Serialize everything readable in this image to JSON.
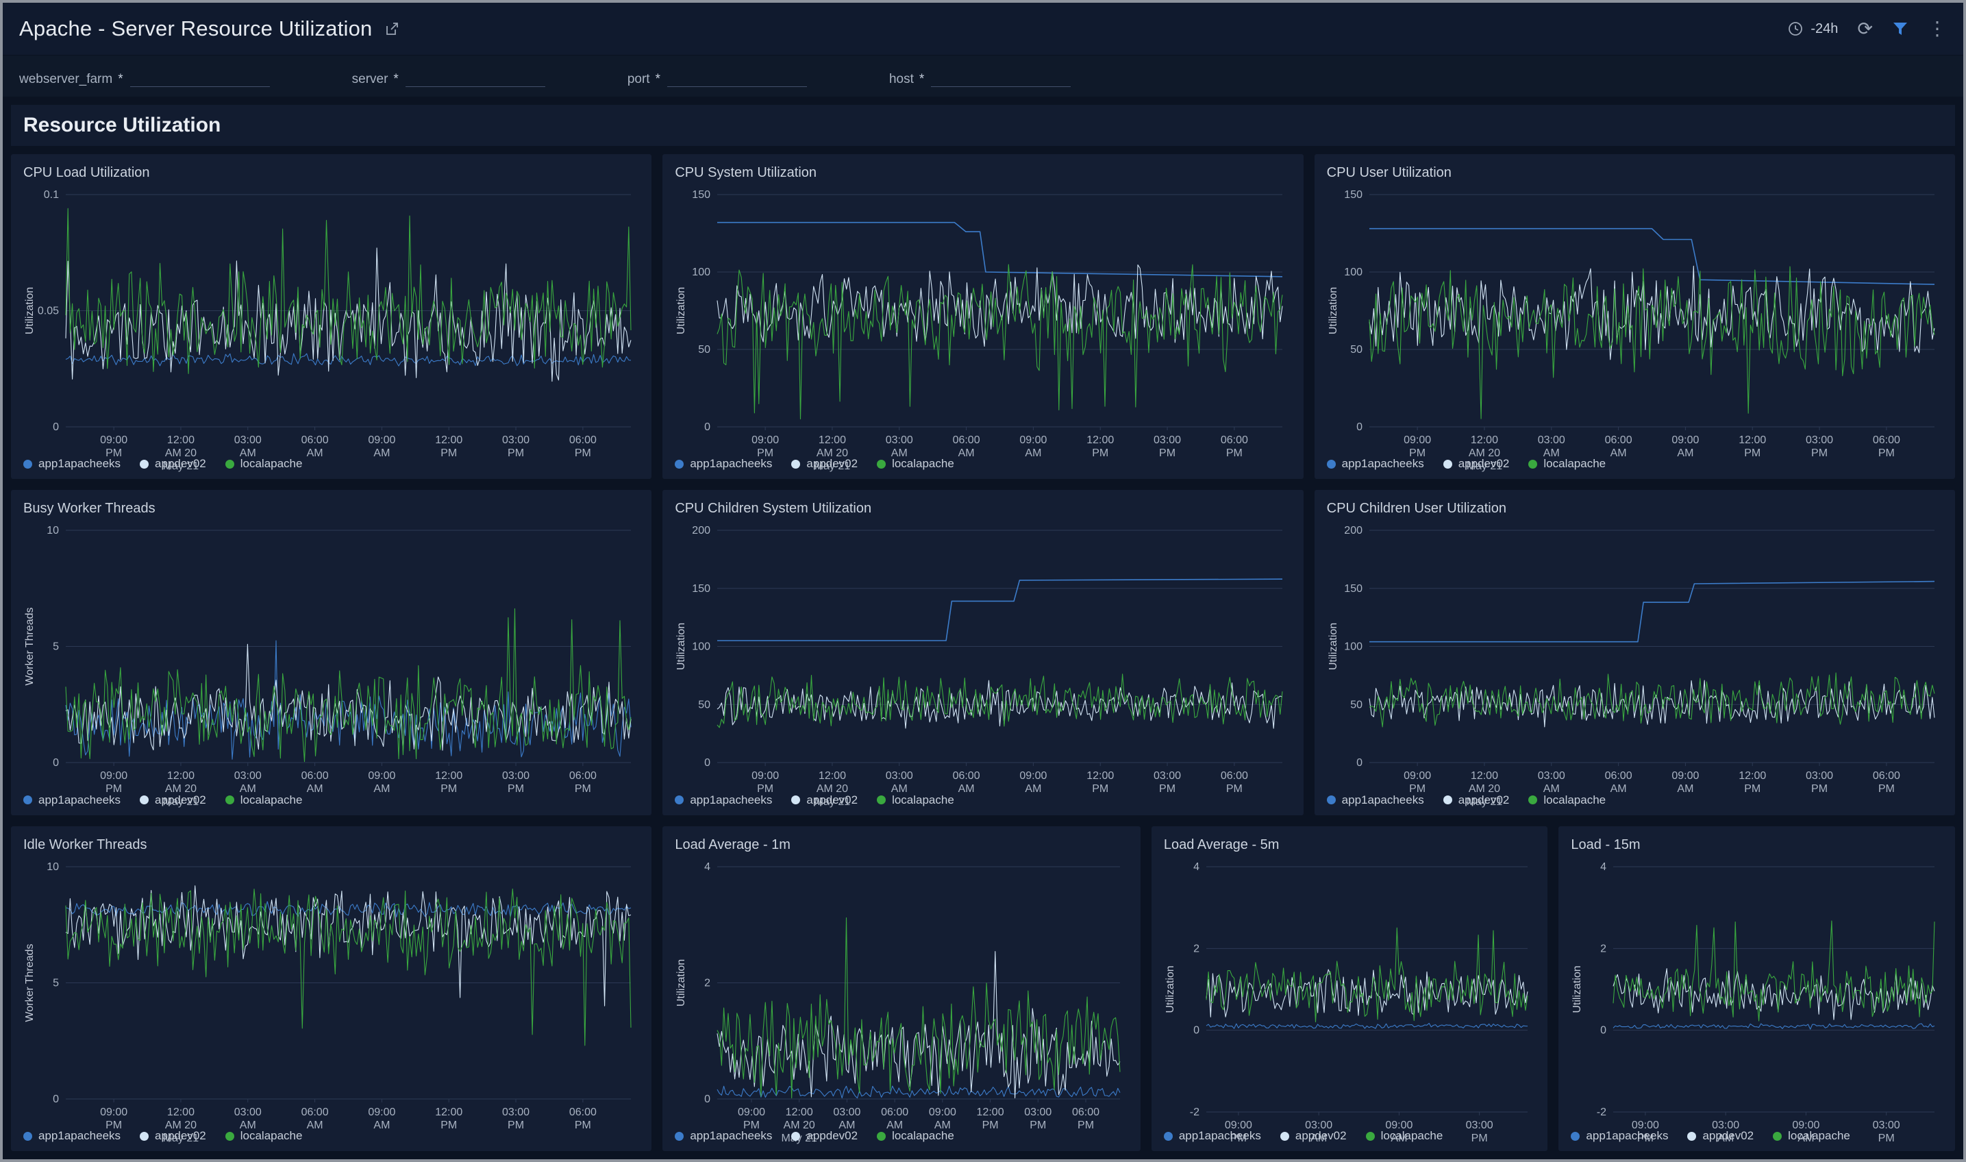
{
  "header": {
    "title": "Apache - Server Resource Utilization",
    "time_range": "-24h"
  },
  "filters": [
    {
      "label": "webserver_farm",
      "star": "*"
    },
    {
      "label": "server",
      "star": "*"
    },
    {
      "label": "port",
      "star": "*"
    },
    {
      "label": "host",
      "star": "*"
    }
  ],
  "section": {
    "title": "Resource Utilization"
  },
  "colors": {
    "blue": "#3c7cca",
    "lightblue": "#d3e5f5",
    "green": "#3aa93f",
    "grid": "#2c3954",
    "accent_filter": "#3e86e0"
  },
  "legend": [
    "app1apacheeks",
    "appdev02",
    "localapache"
  ],
  "legend_colors": [
    "blue",
    "lightblue",
    "green"
  ],
  "xlabels_8": [
    [
      "09:00",
      "PM"
    ],
    [
      "12:00",
      "AM 20",
      "May 21"
    ],
    [
      "03:00",
      "AM"
    ],
    [
      "06:00",
      "AM"
    ],
    [
      "09:00",
      "AM"
    ],
    [
      "12:00",
      "PM"
    ],
    [
      "03:00",
      "PM"
    ],
    [
      "06:00",
      "PM"
    ]
  ],
  "chart_data": [
    {
      "type": "line",
      "title": "CPU Load Utilization",
      "ylabel": "Utilization",
      "span": 8,
      "ylim": [
        0,
        0.1
      ],
      "yticks": [
        0,
        0.05,
        0.1
      ],
      "ytick_labels": [
        "0",
        "0.05",
        "0.1"
      ],
      "xtick_labels": [
        [
          "09:00",
          "PM"
        ],
        [
          "12:00",
          "AM 20",
          "May 21"
        ],
        [
          "03:00",
          "AM"
        ],
        [
          "06:00",
          "AM"
        ],
        [
          "09:00",
          "AM"
        ],
        [
          "12:00",
          "PM"
        ],
        [
          "03:00",
          "PM"
        ],
        [
          "06:00",
          "PM"
        ]
      ],
      "series": [
        {
          "name": "app1apacheeks",
          "color": "blue",
          "gen": {
            "kind": "noise",
            "base": 0.029,
            "amp": 0.002,
            "seed": 11
          }
        },
        {
          "name": "appdev02",
          "color": "lightblue",
          "gen": {
            "kind": "noise",
            "base": 0.042,
            "amp": 0.016,
            "seed": 12,
            "spike": 0.078,
            "spikeP": 0.015
          }
        },
        {
          "name": "localapache",
          "color": "green",
          "gen": {
            "kind": "noise",
            "base": 0.046,
            "amp": 0.018,
            "seed": 13,
            "spike": 0.095,
            "spikeP": 0.02
          }
        }
      ]
    },
    {
      "type": "line",
      "title": "CPU System Utilization",
      "ylabel": "Utilization",
      "span": 8,
      "ylim": [
        0,
        150
      ],
      "yticks": [
        0,
        50,
        100,
        150
      ],
      "ytick_labels": [
        "0",
        "50",
        "100",
        "150"
      ],
      "xtick_labels": [
        [
          "09:00",
          "PM"
        ],
        [
          "12:00",
          "AM 20",
          "May 21"
        ],
        [
          "03:00",
          "AM"
        ],
        [
          "06:00",
          "AM"
        ],
        [
          "09:00",
          "AM"
        ],
        [
          "12:00",
          "PM"
        ],
        [
          "03:00",
          "PM"
        ],
        [
          "06:00",
          "PM"
        ]
      ],
      "series": [
        {
          "name": "app1apacheeks",
          "color": "blue",
          "gen": {
            "kind": "steps",
            "points": [
              [
                0,
                132
              ],
              [
                0.42,
                132
              ],
              [
                0.44,
                126
              ],
              [
                0.465,
                126
              ],
              [
                0.475,
                100
              ],
              [
                1,
                97
              ]
            ]
          }
        },
        {
          "name": "appdev02",
          "color": "lightblue",
          "gen": {
            "kind": "noise",
            "base": 78,
            "amp": 20,
            "seed": 22
          }
        },
        {
          "name": "localapache",
          "color": "green",
          "gen": {
            "kind": "noise",
            "base": 72,
            "amp": 26,
            "seed": 23,
            "spike": 18,
            "spikeP": 0.012
          }
        }
      ]
    },
    {
      "type": "line",
      "title": "CPU User Utilization",
      "ylabel": "Utilization",
      "span": 8,
      "ylim": [
        0,
        150
      ],
      "yticks": [
        0,
        50,
        100,
        150
      ],
      "ytick_labels": [
        "0",
        "50",
        "100",
        "150"
      ],
      "xtick_labels": [
        [
          "09:00",
          "PM"
        ],
        [
          "12:00",
          "AM 20",
          "May 21"
        ],
        [
          "03:00",
          "AM"
        ],
        [
          "06:00",
          "AM"
        ],
        [
          "09:00",
          "AM"
        ],
        [
          "12:00",
          "PM"
        ],
        [
          "03:00",
          "PM"
        ],
        [
          "06:00",
          "PM"
        ]
      ],
      "series": [
        {
          "name": "app1apacheeks",
          "color": "blue",
          "gen": {
            "kind": "steps",
            "points": [
              [
                0,
                128
              ],
              [
                0.5,
                128
              ],
              [
                0.52,
                121
              ],
              [
                0.57,
                121
              ],
              [
                0.585,
                95
              ],
              [
                1,
                92
              ]
            ]
          }
        },
        {
          "name": "appdev02",
          "color": "lightblue",
          "gen": {
            "kind": "noise",
            "base": 74,
            "amp": 21,
            "seed": 32
          }
        },
        {
          "name": "localapache",
          "color": "green",
          "gen": {
            "kind": "noise",
            "base": 66,
            "amp": 26,
            "seed": 33,
            "spike": 14,
            "spikeP": 0.012
          }
        }
      ]
    },
    {
      "type": "line",
      "title": "Busy Worker Threads",
      "ylabel": "Worker Threads",
      "span": 8,
      "ylim": [
        0,
        10
      ],
      "yticks": [
        0,
        5,
        10
      ],
      "ytick_labels": [
        "0",
        "5",
        "10"
      ],
      "xtick_labels": [
        [
          "09:00",
          "PM"
        ],
        [
          "12:00",
          "AM 20",
          "May 21"
        ],
        [
          "03:00",
          "AM"
        ],
        [
          "06:00",
          "AM"
        ],
        [
          "09:00",
          "AM"
        ],
        [
          "12:00",
          "PM"
        ],
        [
          "03:00",
          "PM"
        ],
        [
          "06:00",
          "PM"
        ]
      ],
      "series": [
        {
          "name": "app1apacheeks",
          "color": "blue",
          "gen": {
            "kind": "noise",
            "base": 1.7,
            "amp": 1.1,
            "seed": 41,
            "spike": 5.6,
            "spikeP": 0.006
          }
        },
        {
          "name": "appdev02",
          "color": "lightblue",
          "gen": {
            "kind": "noise",
            "base": 2.0,
            "amp": 1.2,
            "seed": 42,
            "spike": 5.2,
            "spikeP": 0.006
          }
        },
        {
          "name": "localapache",
          "color": "green",
          "gen": {
            "kind": "noise",
            "base": 2.1,
            "amp": 1.5,
            "seed": 43,
            "spike": 7.0,
            "spikeP": 0.01
          }
        }
      ]
    },
    {
      "type": "line",
      "title": "CPU Children System Utilization",
      "ylabel": "Utilization",
      "span": 8,
      "ylim": [
        0,
        200
      ],
      "yticks": [
        0,
        50,
        100,
        150,
        200
      ],
      "ytick_labels": [
        "0",
        "50",
        "100",
        "150",
        "200"
      ],
      "xtick_labels": [
        [
          "09:00",
          "PM"
        ],
        [
          "12:00",
          "AM 20",
          "May 21"
        ],
        [
          "03:00",
          "AM"
        ],
        [
          "06:00",
          "AM"
        ],
        [
          "09:00",
          "AM"
        ],
        [
          "12:00",
          "PM"
        ],
        [
          "03:00",
          "PM"
        ],
        [
          "06:00",
          "PM"
        ]
      ],
      "series": [
        {
          "name": "app1apacheeks",
          "color": "blue",
          "gen": {
            "kind": "steps",
            "points": [
              [
                0,
                105
              ],
              [
                0.405,
                105
              ],
              [
                0.415,
                139
              ],
              [
                0.525,
                139
              ],
              [
                0.535,
                157
              ],
              [
                1,
                158
              ]
            ]
          }
        },
        {
          "name": "appdev02",
          "color": "lightblue",
          "gen": {
            "kind": "noise",
            "base": 50,
            "amp": 14,
            "seed": 52
          }
        },
        {
          "name": "localapache",
          "color": "green",
          "gen": {
            "kind": "noise",
            "base": 52,
            "amp": 17,
            "seed": 53
          }
        }
      ]
    },
    {
      "type": "line",
      "title": "CPU Children User Utilization",
      "ylabel": "Utilization",
      "span": 8,
      "ylim": [
        0,
        200
      ],
      "yticks": [
        0,
        50,
        100,
        150,
        200
      ],
      "ytick_labels": [
        "0",
        "50",
        "100",
        "150",
        "200"
      ],
      "xtick_labels": [
        [
          "09:00",
          "PM"
        ],
        [
          "12:00",
          "AM 20",
          "May 21"
        ],
        [
          "03:00",
          "AM"
        ],
        [
          "06:00",
          "AM"
        ],
        [
          "09:00",
          "AM"
        ],
        [
          "12:00",
          "PM"
        ],
        [
          "03:00",
          "PM"
        ],
        [
          "06:00",
          "PM"
        ]
      ],
      "series": [
        {
          "name": "app1apacheeks",
          "color": "blue",
          "gen": {
            "kind": "steps",
            "points": [
              [
                0,
                104
              ],
              [
                0.475,
                104
              ],
              [
                0.485,
                138
              ],
              [
                0.565,
                138
              ],
              [
                0.575,
                154
              ],
              [
                1,
                156
              ]
            ]
          }
        },
        {
          "name": "appdev02",
          "color": "lightblue",
          "gen": {
            "kind": "noise",
            "base": 50,
            "amp": 15,
            "seed": 62
          }
        },
        {
          "name": "localapache",
          "color": "green",
          "gen": {
            "kind": "noise",
            "base": 53,
            "amp": 18,
            "seed": 63
          }
        }
      ]
    },
    {
      "type": "line",
      "title": "Idle Worker Threads",
      "ylabel": "Worker Threads",
      "span": 8,
      "ylim": [
        0,
        10
      ],
      "yticks": [
        0,
        5,
        10
      ],
      "ytick_labels": [
        "0",
        "5",
        "10"
      ],
      "xtick_labels": [
        [
          "09:00",
          "PM"
        ],
        [
          "12:00",
          "AM 20",
          "May 21"
        ],
        [
          "03:00",
          "AM"
        ],
        [
          "06:00",
          "AM"
        ],
        [
          "09:00",
          "AM"
        ],
        [
          "12:00",
          "PM"
        ],
        [
          "03:00",
          "PM"
        ],
        [
          "06:00",
          "PM"
        ]
      ],
      "series": [
        {
          "name": "app1apacheeks",
          "color": "blue",
          "gen": {
            "kind": "noise",
            "base": 8.15,
            "amp": 0.25,
            "seed": 71
          }
        },
        {
          "name": "appdev02",
          "color": "lightblue",
          "gen": {
            "kind": "noise",
            "base": 7.6,
            "amp": 1.1,
            "seed": 72,
            "spike": 4.6,
            "spikeP": 0.008
          }
        },
        {
          "name": "localapache",
          "color": "green",
          "gen": {
            "kind": "noise",
            "base": 7.3,
            "amp": 1.5,
            "seed": 73,
            "spike": 3.2,
            "spikeP": 0.012
          }
        }
      ]
    },
    {
      "type": "line",
      "title": "Load Average - 1m",
      "ylabel": "Utilization",
      "span": 6,
      "ylim": [
        0,
        4
      ],
      "yticks": [
        0,
        2,
        4
      ],
      "ytick_labels": [
        "0",
        "2",
        "4"
      ],
      "xtick_labels": [
        [
          "09:00",
          "PM"
        ],
        [
          "12:00",
          "AM 20",
          "May 21"
        ],
        [
          "03:00",
          "AM"
        ],
        [
          "06:00",
          "AM"
        ],
        [
          "09:00",
          "AM"
        ],
        [
          "12:00",
          "PM"
        ],
        [
          "03:00",
          "PM"
        ],
        [
          "06:00",
          "PM"
        ]
      ],
      "series": [
        {
          "name": "app1apacheeks",
          "color": "blue",
          "gen": {
            "kind": "noise",
            "base": 0.12,
            "amp": 0.08,
            "seed": 81
          }
        },
        {
          "name": "appdev02",
          "color": "lightblue",
          "gen": {
            "kind": "noise",
            "base": 0.75,
            "amp": 0.55,
            "seed": 82,
            "spike": 2.6,
            "spikeP": 0.015
          }
        },
        {
          "name": "localapache",
          "color": "green",
          "gen": {
            "kind": "noise",
            "base": 0.95,
            "amp": 0.75,
            "seed": 83,
            "spike": 3.3,
            "spikeP": 0.02
          }
        }
      ]
    },
    {
      "type": "line",
      "title": "Load Average - 5m",
      "ylabel": "Utilization",
      "span": 5,
      "ylim": [
        -2,
        4
      ],
      "yticks": [
        -2,
        0,
        2,
        4
      ],
      "ytick_labels": [
        "-2",
        "0",
        "2",
        "4"
      ],
      "xtick_labels": [
        [
          "09:00",
          "PM"
        ],
        [
          "03:00",
          "AM"
        ],
        [
          "09:00",
          "AM"
        ],
        [
          "03:00",
          "PM"
        ]
      ],
      "series": [
        {
          "name": "app1apacheeks",
          "color": "blue",
          "gen": {
            "kind": "noise",
            "base": 0.1,
            "amp": 0.05,
            "seed": 91
          }
        },
        {
          "name": "appdev02",
          "color": "lightblue",
          "gen": {
            "kind": "noise",
            "base": 0.85,
            "amp": 0.45,
            "seed": 92
          }
        },
        {
          "name": "localapache",
          "color": "green",
          "gen": {
            "kind": "noise",
            "base": 1.0,
            "amp": 0.55,
            "seed": 93,
            "spike": 2.6,
            "spikeP": 0.02
          }
        }
      ]
    },
    {
      "type": "line",
      "title": "Load - 15m",
      "ylabel": "Utilization",
      "span": 5,
      "ylim": [
        -2,
        4
      ],
      "yticks": [
        -2,
        0,
        2,
        4
      ],
      "ytick_labels": [
        "-2",
        "0",
        "2",
        "4"
      ],
      "xtick_labels": [
        [
          "09:00",
          "PM"
        ],
        [
          "03:00",
          "AM"
        ],
        [
          "09:00",
          "AM"
        ],
        [
          "03:00",
          "PM"
        ]
      ],
      "series": [
        {
          "name": "app1apacheeks",
          "color": "blue",
          "gen": {
            "kind": "noise",
            "base": 0.1,
            "amp": 0.05,
            "seed": 101
          }
        },
        {
          "name": "appdev02",
          "color": "lightblue",
          "gen": {
            "kind": "noise",
            "base": 0.9,
            "amp": 0.45,
            "seed": 102
          }
        },
        {
          "name": "localapache",
          "color": "green",
          "gen": {
            "kind": "noise",
            "base": 1.0,
            "amp": 0.55,
            "seed": 103,
            "spike": 2.8,
            "spikeP": 0.02
          }
        }
      ]
    }
  ]
}
